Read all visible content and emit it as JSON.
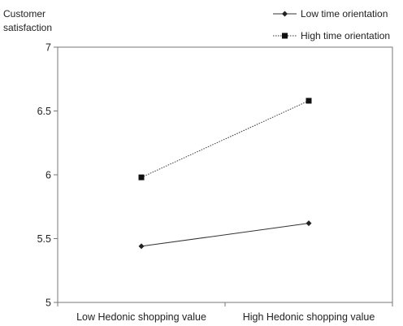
{
  "chart_data": {
    "type": "line",
    "ylabel": [
      "Customer",
      "satisfaction"
    ],
    "categories": [
      "Low Hedonic shopping value",
      "High Hedonic shopping value"
    ],
    "ylim": [
      5,
      7
    ],
    "yticks": [
      "5",
      "5.5",
      "6",
      "6.5",
      "7"
    ],
    "grid": false,
    "legend_position": "top-right",
    "series": [
      {
        "name": "Low time orientation",
        "values": [
          5.44,
          5.62
        ],
        "marker": "diamond",
        "line": "solid",
        "color": "#333333"
      },
      {
        "name": "High time orientation",
        "values": [
          5.98,
          6.58
        ],
        "marker": "square",
        "line": "dotted",
        "color": "#333333"
      }
    ]
  }
}
